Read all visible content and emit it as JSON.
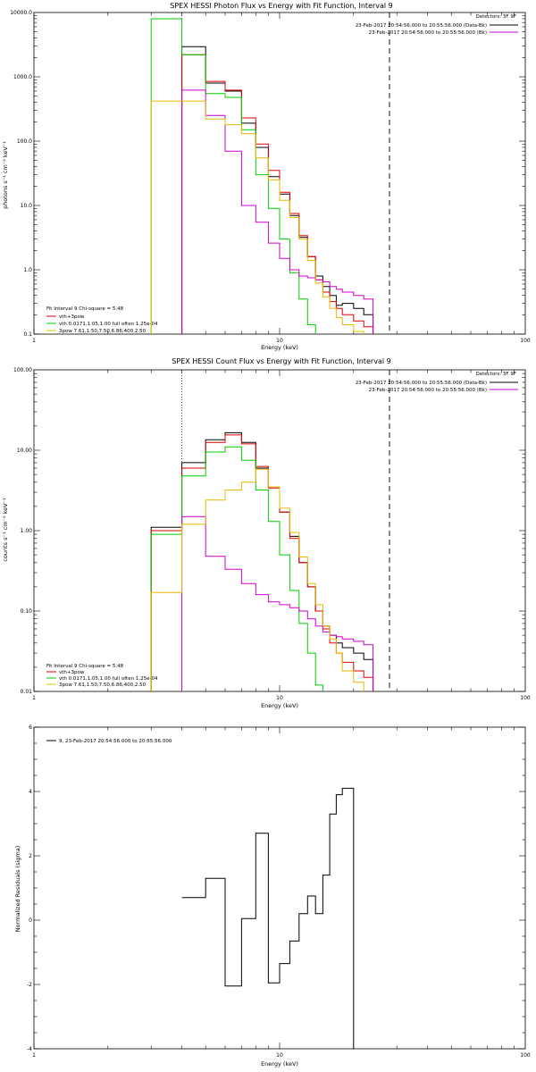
{
  "colors": {
    "black": "#000000",
    "red": "#e00000",
    "green": "#00cc00",
    "magenta": "#cc00cc",
    "yellow": "#e8b800"
  },
  "chart_data": [
    {
      "type": "line",
      "title": "SPEX HESSI Photon Flux vs Energy with Fit Function, Interval 9",
      "xlabel": "Energy (keV)",
      "ylabel": "photons s⁻¹ cm⁻² keV⁻¹",
      "x_scale": "log",
      "y_scale": "log",
      "xlim": [
        1,
        100
      ],
      "ylim": [
        0.1,
        10000
      ],
      "x_ticks": [
        "1",
        "10",
        "100"
      ],
      "y_ticks": [
        "0.1",
        "1.0",
        "10.0",
        "100.0",
        "1000.0",
        "10000.0"
      ],
      "energy_edges": [
        3.0,
        4.0,
        5.0,
        6.0,
        7.0,
        8.0,
        9.0,
        10.0,
        11.0,
        12.0,
        13.0,
        14.0,
        15.0,
        16.0,
        17.0,
        18.0,
        20.0,
        22.0,
        24.0,
        26.0,
        28.0
      ],
      "fit_range": [
        4.0,
        28.0
      ],
      "detectors_label": "Detectors: 3F 9F",
      "time_labels": [
        {
          "text": "23-Feb-2017 20:54:56.000 to 20:55:56.000 (Data-Bk)",
          "color": "#000000"
        },
        {
          "text": "23-Feb-2017 20:54:56.000 to 20:55:56.000 (Bk)",
          "color": "#cc00cc"
        }
      ],
      "fit_label": "Fit Interval 9   Chi-square = 5.48",
      "legend": [
        {
          "label": "vth+3pow",
          "color": "#e00000"
        },
        {
          "label": "vth 0.0171,1.05,1.00  full often 1.25e-04",
          "color": "#00cc00"
        },
        {
          "label": "3pow 7.61,1.50,7.50,6.86,400,2.50",
          "color": "#e8b800"
        }
      ],
      "series": [
        {
          "color": "#000000",
          "values": [
            null,
            2950,
            800,
            600,
            190,
            80,
            28,
            15,
            7,
            3.2,
            1.6,
            0.8,
            0.55,
            0.4,
            0.28,
            0.3,
            0.25,
            0.2,
            null,
            null
          ]
        },
        {
          "color": "#e00000",
          "values": [
            null,
            2200,
            850,
            620,
            230,
            90,
            35,
            16,
            7.5,
            3.4,
            1.6,
            0.7,
            0.45,
            0.32,
            0.25,
            0.2,
            0.16,
            0.13,
            null,
            null
          ]
        },
        {
          "color": "#00cc00",
          "values": [
            8000,
            2200,
            550,
            480,
            150,
            30,
            9,
            3,
            0.9,
            0.35,
            0.14,
            null,
            null,
            null,
            null,
            null,
            null,
            null,
            null,
            null
          ]
        },
        {
          "color": "#cc00cc",
          "values": [
            null,
            620,
            250,
            70,
            10,
            5.5,
            2.6,
            1.5,
            1.0,
            0.8,
            0.75,
            0.7,
            0.65,
            0.55,
            0.5,
            0.45,
            0.4,
            0.35,
            null,
            null
          ]
        },
        {
          "color": "#e8b800",
          "values": [
            420,
            420,
            220,
            180,
            130,
            55,
            25,
            12,
            6.5,
            3.0,
            1.4,
            0.62,
            0.38,
            0.25,
            0.18,
            0.14,
            0.11,
            null,
            null,
            null
          ]
        }
      ]
    },
    {
      "type": "line",
      "title": "SPEX HESSI Count Flux vs Energy with Fit Function, Interval 9",
      "xlabel": "Energy (keV)",
      "ylabel": "counts s⁻¹ cm⁻² keV⁻¹",
      "x_scale": "log",
      "y_scale": "log",
      "xlim": [
        1,
        100
      ],
      "ylim": [
        0.01,
        100
      ],
      "x_ticks": [
        "1",
        "10",
        "100"
      ],
      "y_ticks": [
        "0.01",
        "0.10",
        "1.00",
        "10.00",
        "100.00"
      ],
      "energy_edges": [
        3.0,
        4.0,
        5.0,
        6.0,
        7.0,
        8.0,
        9.0,
        10.0,
        11.0,
        12.0,
        13.0,
        14.0,
        15.0,
        16.0,
        17.0,
        18.0,
        20.0,
        22.0,
        24.0,
        26.0,
        28.0
      ],
      "fit_range": [
        4.0,
        28.0
      ],
      "detectors_label": "Detectors: 3F 9F",
      "time_labels": [
        {
          "text": "23-Feb-2017 20:54:56.000 to 20:55:56.000 (Data-Bk)",
          "color": "#000000"
        },
        {
          "text": "23-Feb-2017 20:54:56.000 to 20:55:56.000 (Bk)",
          "color": "#cc00cc"
        }
      ],
      "fit_label": "Fit Interval 9   Chi-square = 5.48",
      "legend": [
        {
          "label": "vth+3pow",
          "color": "#e00000"
        },
        {
          "label": "vth 0.0171,1.05,1.00  full often 1.25e-04",
          "color": "#00cc00"
        },
        {
          "label": "3pow 7.61,1.50,7.50,6.86,400,2.50",
          "color": "#e8b800"
        }
      ],
      "series": [
        {
          "color": "#000000",
          "values": [
            1.1,
            7.0,
            13.5,
            16.5,
            12.5,
            6.0,
            3.5,
            1.7,
            0.85,
            0.4,
            0.2,
            0.1,
            0.065,
            0.05,
            0.04,
            0.035,
            0.03,
            0.025,
            null,
            null
          ]
        },
        {
          "color": "#e00000",
          "values": [
            1.0,
            6.0,
            12.5,
            15.5,
            12.0,
            6.3,
            3.4,
            1.7,
            0.8,
            0.4,
            0.2,
            0.1,
            0.06,
            0.04,
            0.03,
            0.023,
            0.018,
            0.015,
            null,
            null
          ]
        },
        {
          "color": "#00cc00",
          "values": [
            0.9,
            4.8,
            9.5,
            11.0,
            7.5,
            3.2,
            1.3,
            0.5,
            0.18,
            0.07,
            0.03,
            0.012,
            null,
            null,
            null,
            null,
            null,
            null,
            null,
            null
          ]
        },
        {
          "color": "#cc00cc",
          "values": [
            null,
            1.5,
            0.48,
            0.33,
            0.22,
            0.16,
            0.13,
            0.12,
            0.11,
            0.1,
            0.08,
            0.065,
            0.055,
            0.05,
            0.048,
            0.045,
            0.042,
            0.038,
            null,
            null
          ]
        },
        {
          "color": "#e8b800",
          "values": [
            0.17,
            1.2,
            2.4,
            3.2,
            4.0,
            5.8,
            3.5,
            1.9,
            0.95,
            0.47,
            0.22,
            0.12,
            0.065,
            0.045,
            0.03,
            0.018,
            0.013,
            null,
            null,
            null
          ]
        }
      ]
    },
    {
      "type": "line",
      "title": "",
      "xlabel": "Energy (keV)",
      "ylabel": "Normalized Residuals (sigma)",
      "x_scale": "log",
      "y_scale": "linear",
      "xlim": [
        1,
        100
      ],
      "ylim": [
        -4,
        6
      ],
      "x_ticks": [
        "1",
        "10",
        "100"
      ],
      "y_ticks": [
        "-4",
        "-2",
        "0",
        "2",
        "4",
        "6"
      ],
      "energy_edges": [
        4.0,
        5.0,
        6.0,
        7.0,
        8.0,
        9.0,
        10.0,
        11.0,
        12.0,
        13.0,
        14.0,
        15.0,
        16.0,
        17.0,
        18.0,
        20.0,
        22.0,
        24.0,
        26.0,
        28.0
      ],
      "legend": [
        {
          "label": "9, 23-Feb-2017 20:54:56.000 to 20:55:56.000",
          "color": "#000000"
        }
      ],
      "series": [
        {
          "color": "#000000",
          "values": [
            0.7,
            1.3,
            -2.05,
            0.05,
            2.7,
            -1.95,
            -1.35,
            -0.65,
            0.2,
            0.75,
            0.2,
            1.4,
            3.3,
            3.9,
            4.1
          ]
        }
      ]
    }
  ]
}
